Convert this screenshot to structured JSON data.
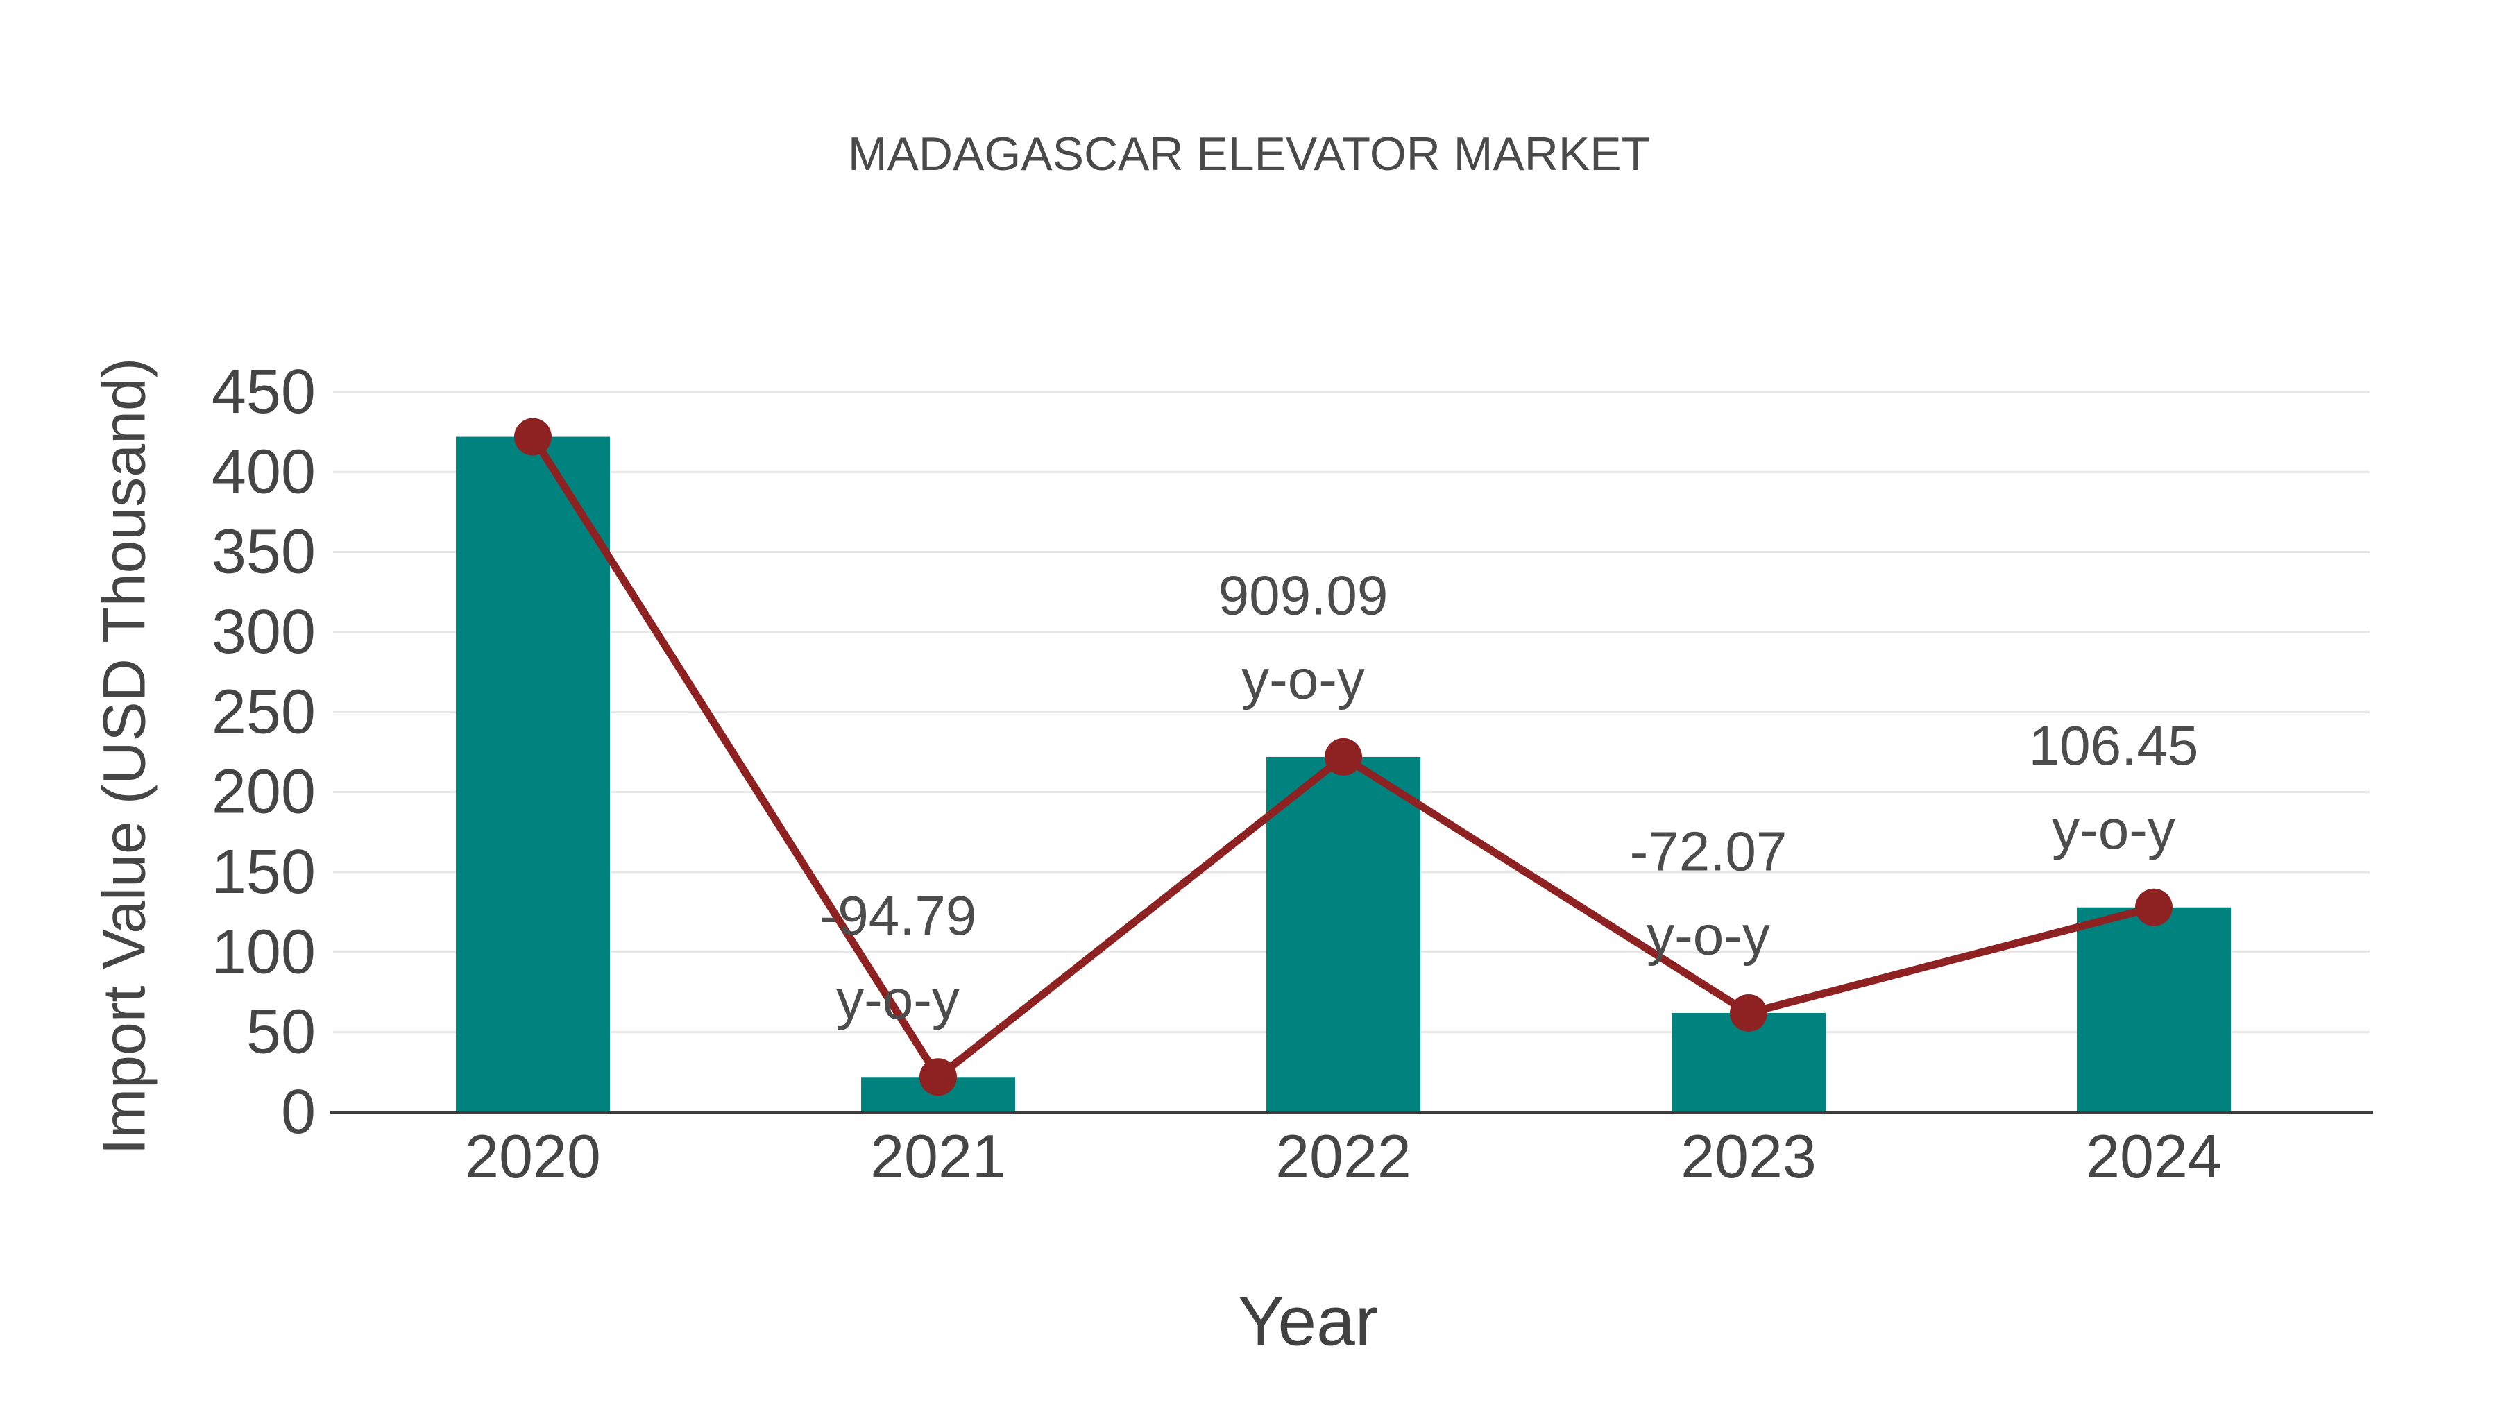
{
  "chart_data": {
    "type": "bar",
    "combo": "bar with overlaid line and point markers",
    "title": "MADAGASCAR ELEVATOR MARKET",
    "xlabel": "Year",
    "ylabel": "Import Value (USD Thousand)",
    "categories": [
      "2020",
      "2021",
      "2022",
      "2023",
      "2024"
    ],
    "series": [
      {
        "name": "Import Value (USD Thousand)",
        "type": "bar",
        "color": "#00837F",
        "values": [
          422,
          22,
          222,
          62,
          128
        ]
      },
      {
        "name": "y-o-y growth (%)",
        "type": "line",
        "color": "#8E2222",
        "plotted_at_import_values": [
          422,
          22,
          222,
          62,
          128
        ],
        "pct_values": [
          null,
          -94.79,
          909.09,
          -72.07,
          106.45
        ]
      }
    ],
    "annotations": [
      {
        "category": "2021",
        "value": "-94.79",
        "label": "y-o-y"
      },
      {
        "category": "2022",
        "value": "909.09",
        "label": "y-o-y"
      },
      {
        "category": "2023",
        "value": "-72.07",
        "label": "y-o-y"
      },
      {
        "category": "2024",
        "value": "106.45",
        "label": "y-o-y"
      }
    ],
    "ylim": [
      0,
      450
    ],
    "ytick_step": 50,
    "yticks": [
      0,
      50,
      100,
      150,
      200,
      250,
      300,
      350,
      400,
      450
    ],
    "grid": "horizontal",
    "legend": "none"
  },
  "style": {
    "background": "#ffffff",
    "bar_color": "#00837F",
    "line_color": "#8E2222",
    "grid_color": "#E7E7E7",
    "axis_color": "#3C3C3C",
    "tick_text_color": "#454545",
    "annotation_color": "#4C4C4C",
    "title_color": "#4A4A4A"
  }
}
